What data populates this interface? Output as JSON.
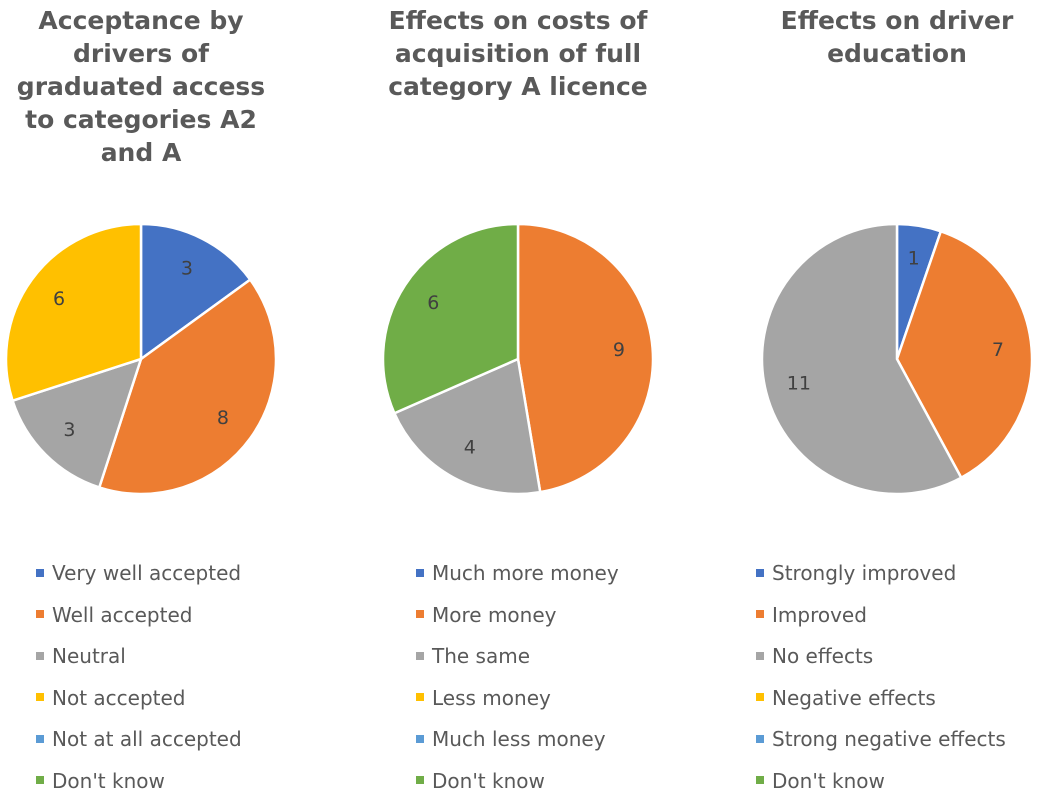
{
  "chart_data": [
    {
      "type": "pie",
      "title": "Acceptance by drivers of graduated access to categories A2 and A",
      "categories": [
        "Very well accepted",
        "Well accepted",
        "Neutral",
        "Not accepted",
        "Not at all accepted",
        "Don't know"
      ],
      "values": [
        3,
        8,
        3,
        6,
        0,
        0
      ],
      "colors": [
        "#4472c4",
        "#ed7d31",
        "#a5a5a5",
        "#ffc000",
        "#5b9bd5",
        "#70ad47"
      ]
    },
    {
      "type": "pie",
      "title": "Effects on costs of acquisition of full category A licence",
      "categories": [
        "Much more money",
        "More money",
        "The same",
        "Less money",
        "Much less money",
        "Don't know"
      ],
      "values": [
        0,
        9,
        4,
        0,
        0,
        6
      ],
      "colors": [
        "#4472c4",
        "#ed7d31",
        "#a5a5a5",
        "#ffc000",
        "#5b9bd5",
        "#70ad47"
      ]
    },
    {
      "type": "pie",
      "title": "Effects on driver education",
      "categories": [
        "Strongly improved",
        "Improved",
        "No effects",
        "Negative effects",
        "Strong negative effects",
        "Don't know"
      ],
      "values": [
        1,
        7,
        11,
        0,
        0,
        0
      ],
      "colors": [
        "#4472c4",
        "#ed7d31",
        "#a5a5a5",
        "#ffc000",
        "#5b9bd5",
        "#70ad47"
      ]
    }
  ]
}
